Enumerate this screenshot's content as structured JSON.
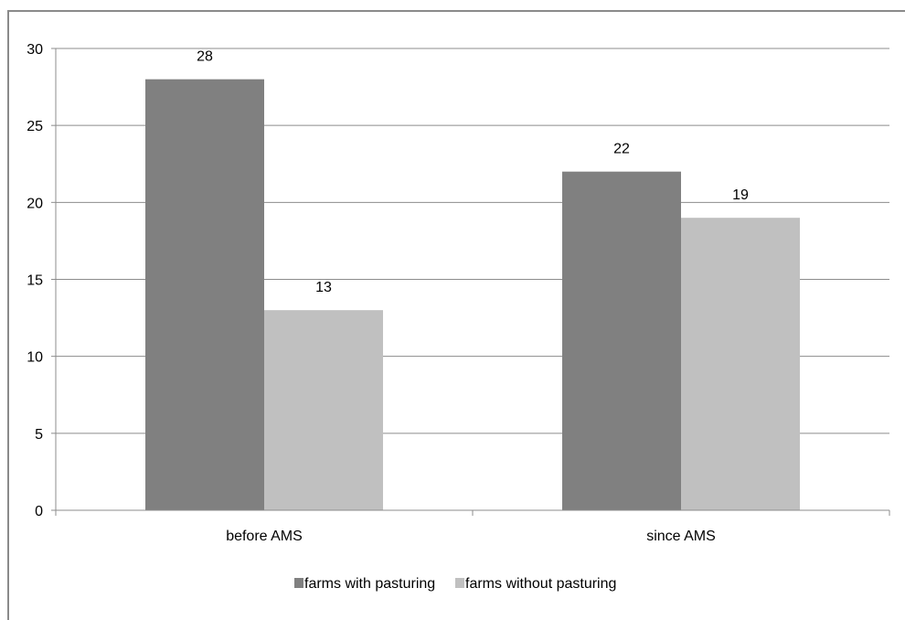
{
  "chart_data": {
    "type": "bar",
    "categories": [
      "before AMS",
      "since AMS"
    ],
    "series": [
      {
        "name": "farms with pasturing",
        "values": [
          28,
          22
        ],
        "color": "#808080"
      },
      {
        "name": "farms without pasturing",
        "values": [
          13,
          19
        ],
        "color": "#c0c0c0"
      }
    ],
    "ylim": [
      0,
      30
    ],
    "yticks": [
      0,
      5,
      10,
      15,
      20,
      25,
      30
    ],
    "grid": true,
    "legend_position": "bottom",
    "show_data_labels": true
  }
}
